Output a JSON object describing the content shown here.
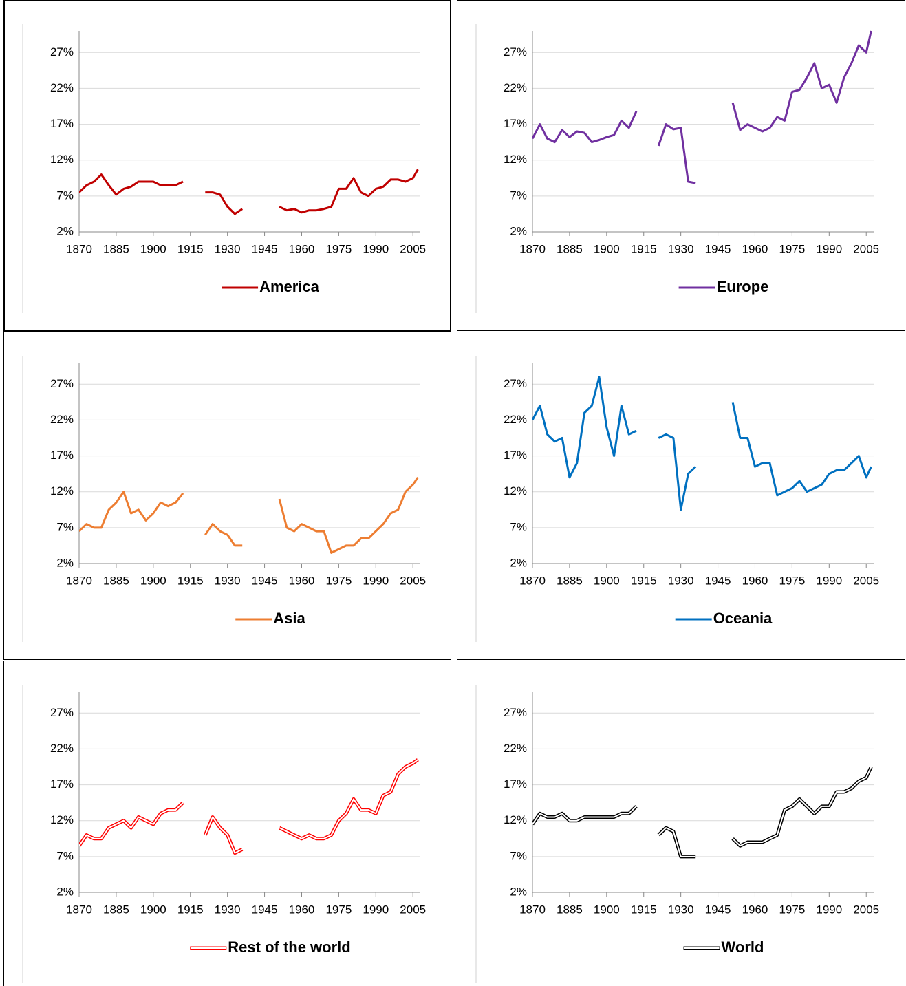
{
  "chart_data": [
    {
      "type": "line",
      "line_style": "single",
      "legend": "bottom",
      "grid": true,
      "x": [
        1870,
        1873,
        1876,
        1879,
        1882,
        1885,
        1888,
        1891,
        1894,
        1897,
        1900,
        1903,
        1906,
        1909,
        1912,
        1915,
        1918,
        1921,
        1924,
        1927,
        1930,
        1933,
        1936,
        1939,
        1942,
        1945,
        1948,
        1951,
        1954,
        1957,
        1960,
        1963,
        1966,
        1969,
        1972,
        1975,
        1978,
        1981,
        1984,
        1987,
        1990,
        1993,
        1996,
        1999,
        2002,
        2005,
        2007
      ],
      "xlim": [
        1870,
        2008
      ],
      "xticks": [
        1870,
        1885,
        1900,
        1915,
        1930,
        1945,
        1960,
        1975,
        1990,
        2005
      ],
      "ylim": [
        2,
        30
      ],
      "yticks": [
        {
          "value": 2,
          "label": "2%"
        },
        {
          "value": 7,
          "label": "7%"
        },
        {
          "value": 12,
          "label": "12%"
        },
        {
          "value": 17,
          "label": "17%"
        },
        {
          "value": 22,
          "label": "22%"
        },
        {
          "value": 27,
          "label": "27%"
        }
      ],
      "series": [
        {
          "name": "America",
          "color": "#C00000",
          "values": [
            7.5,
            8.5,
            9,
            10,
            8.5,
            7.2,
            8,
            8.3,
            9,
            9,
            9,
            8.5,
            8.5,
            8.5,
            9,
            null,
            null,
            7.5,
            7.5,
            7.2,
            5.5,
            4.5,
            5.2,
            null,
            null,
            null,
            null,
            5.5,
            5,
            5.2,
            4.7,
            5,
            5,
            5.2,
            5.5,
            8,
            8,
            9.5,
            7.5,
            7,
            8,
            8.3,
            9.3,
            9.3,
            9,
            9.5,
            10.7
          ]
        }
      ]
    },
    {
      "type": "line",
      "line_style": "single",
      "legend": "bottom",
      "grid": true,
      "x": [
        1870,
        1873,
        1876,
        1879,
        1882,
        1885,
        1888,
        1891,
        1894,
        1897,
        1900,
        1903,
        1906,
        1909,
        1912,
        1915,
        1918,
        1921,
        1924,
        1927,
        1930,
        1933,
        1936,
        1939,
        1942,
        1945,
        1948,
        1951,
        1954,
        1957,
        1960,
        1963,
        1966,
        1969,
        1972,
        1975,
        1978,
        1981,
        1984,
        1987,
        1990,
        1993,
        1996,
        1999,
        2002,
        2005,
        2007
      ],
      "xlim": [
        1870,
        2008
      ],
      "xticks": [
        1870,
        1885,
        1900,
        1915,
        1930,
        1945,
        1960,
        1975,
        1990,
        2005
      ],
      "ylim": [
        2,
        30
      ],
      "yticks": [
        {
          "value": 2,
          "label": "2%"
        },
        {
          "value": 7,
          "label": "7%"
        },
        {
          "value": 12,
          "label": "12%"
        },
        {
          "value": 17,
          "label": "17%"
        },
        {
          "value": 22,
          "label": "22%"
        },
        {
          "value": 27,
          "label": "27%"
        }
      ],
      "series": [
        {
          "name": "Europe",
          "color": "#7030A0",
          "values": [
            15,
            17,
            15,
            14.5,
            16.2,
            15.2,
            16,
            15.8,
            14.5,
            14.8,
            15.2,
            15.5,
            17.5,
            16.5,
            18.8,
            null,
            null,
            14,
            17,
            16.3,
            16.5,
            9,
            8.8,
            null,
            null,
            null,
            null,
            20,
            16.2,
            17,
            16.5,
            16,
            16.5,
            18,
            17.5,
            21.5,
            21.8,
            23.5,
            25.5,
            22,
            22.5,
            20,
            23.5,
            25.5,
            28,
            27,
            30
          ]
        }
      ]
    },
    {
      "type": "line",
      "line_style": "single",
      "legend": "bottom",
      "grid": true,
      "x": [
        1870,
        1873,
        1876,
        1879,
        1882,
        1885,
        1888,
        1891,
        1894,
        1897,
        1900,
        1903,
        1906,
        1909,
        1912,
        1915,
        1918,
        1921,
        1924,
        1927,
        1930,
        1933,
        1936,
        1939,
        1942,
        1945,
        1948,
        1951,
        1954,
        1957,
        1960,
        1963,
        1966,
        1969,
        1972,
        1975,
        1978,
        1981,
        1984,
        1987,
        1990,
        1993,
        1996,
        1999,
        2002,
        2005,
        2007
      ],
      "xlim": [
        1870,
        2008
      ],
      "xticks": [
        1870,
        1885,
        1900,
        1915,
        1930,
        1945,
        1960,
        1975,
        1990,
        2005
      ],
      "ylim": [
        2,
        30
      ],
      "yticks": [
        {
          "value": 2,
          "label": "2%"
        },
        {
          "value": 7,
          "label": "7%"
        },
        {
          "value": 12,
          "label": "12%"
        },
        {
          "value": 17,
          "label": "17%"
        },
        {
          "value": 22,
          "label": "22%"
        },
        {
          "value": 27,
          "label": "27%"
        }
      ],
      "series": [
        {
          "name": "Asia",
          "color": "#ED7D31",
          "values": [
            6.5,
            7.5,
            7,
            7,
            9.5,
            10.5,
            12,
            9,
            9.5,
            8,
            9,
            10.5,
            10,
            10.5,
            11.8,
            null,
            null,
            6,
            7.5,
            6.5,
            6,
            4.5,
            4.5,
            null,
            null,
            null,
            null,
            11,
            7,
            6.5,
            7.5,
            7,
            6.5,
            6.5,
            3.5,
            4,
            4.5,
            4.5,
            5.5,
            5.5,
            6.5,
            7.5,
            9,
            9.5,
            12,
            13,
            14
          ]
        }
      ]
    },
    {
      "type": "line",
      "line_style": "single",
      "legend": "bottom",
      "grid": true,
      "x": [
        1870,
        1873,
        1876,
        1879,
        1882,
        1885,
        1888,
        1891,
        1894,
        1897,
        1900,
        1903,
        1906,
        1909,
        1912,
        1915,
        1918,
        1921,
        1924,
        1927,
        1930,
        1933,
        1936,
        1939,
        1942,
        1945,
        1948,
        1951,
        1954,
        1957,
        1960,
        1963,
        1966,
        1969,
        1972,
        1975,
        1978,
        1981,
        1984,
        1987,
        1990,
        1993,
        1996,
        1999,
        2002,
        2005,
        2007
      ],
      "xlim": [
        1870,
        2008
      ],
      "xticks": [
        1870,
        1885,
        1900,
        1915,
        1930,
        1945,
        1960,
        1975,
        1990,
        2005
      ],
      "ylim": [
        2,
        30
      ],
      "yticks": [
        {
          "value": 2,
          "label": "2%"
        },
        {
          "value": 7,
          "label": "7%"
        },
        {
          "value": 12,
          "label": "12%"
        },
        {
          "value": 17,
          "label": "17%"
        },
        {
          "value": 22,
          "label": "22%"
        },
        {
          "value": 27,
          "label": "27%"
        }
      ],
      "series": [
        {
          "name": "Oceania",
          "color": "#0070C0",
          "values": [
            22,
            24,
            20,
            19,
            19.5,
            14,
            16,
            23,
            24,
            28,
            21,
            17,
            24,
            20,
            20.5,
            null,
            null,
            19.5,
            20,
            19.5,
            9.5,
            14.5,
            15.5,
            null,
            null,
            null,
            null,
            24.5,
            19.5,
            19.5,
            15.5,
            16,
            16,
            11.5,
            12,
            12.5,
            13.5,
            12,
            12.5,
            13,
            14.5,
            15,
            15,
            16,
            17,
            14,
            15.5
          ]
        }
      ]
    },
    {
      "type": "line",
      "line_style": "double",
      "legend": "bottom",
      "grid": true,
      "x": [
        1870,
        1873,
        1876,
        1879,
        1882,
        1885,
        1888,
        1891,
        1894,
        1897,
        1900,
        1903,
        1906,
        1909,
        1912,
        1915,
        1918,
        1921,
        1924,
        1927,
        1930,
        1933,
        1936,
        1939,
        1942,
        1945,
        1948,
        1951,
        1954,
        1957,
        1960,
        1963,
        1966,
        1969,
        1972,
        1975,
        1978,
        1981,
        1984,
        1987,
        1990,
        1993,
        1996,
        1999,
        2002,
        2005,
        2007
      ],
      "xlim": [
        1870,
        2008
      ],
      "xticks": [
        1870,
        1885,
        1900,
        1915,
        1930,
        1945,
        1960,
        1975,
        1990,
        2005
      ],
      "ylim": [
        2,
        30
      ],
      "yticks": [
        {
          "value": 2,
          "label": "2%"
        },
        {
          "value": 7,
          "label": "7%"
        },
        {
          "value": 12,
          "label": "12%"
        },
        {
          "value": 17,
          "label": "17%"
        },
        {
          "value": 22,
          "label": "22%"
        },
        {
          "value": 27,
          "label": "27%"
        }
      ],
      "series": [
        {
          "name": "Rest of the world",
          "color": "#FF0000",
          "values": [
            8.5,
            10,
            9.5,
            9.5,
            11,
            11.5,
            12,
            11,
            12.5,
            12,
            11.5,
            13,
            13.5,
            13.5,
            14.5,
            null,
            null,
            10,
            12.5,
            11,
            10,
            7.5,
            8,
            null,
            null,
            null,
            null,
            11,
            10.5,
            10,
            9.5,
            10,
            9.5,
            9.5,
            10,
            12,
            13,
            15,
            13.5,
            13.5,
            13,
            15.5,
            16,
            18.5,
            19.5,
            20,
            20.5
          ]
        }
      ]
    },
    {
      "type": "line",
      "line_style": "double",
      "legend": "bottom",
      "grid": true,
      "x": [
        1870,
        1873,
        1876,
        1879,
        1882,
        1885,
        1888,
        1891,
        1894,
        1897,
        1900,
        1903,
        1906,
        1909,
        1912,
        1915,
        1918,
        1921,
        1924,
        1927,
        1930,
        1933,
        1936,
        1939,
        1942,
        1945,
        1948,
        1951,
        1954,
        1957,
        1960,
        1963,
        1966,
        1969,
        1972,
        1975,
        1978,
        1981,
        1984,
        1987,
        1990,
        1993,
        1996,
        1999,
        2002,
        2005,
        2007
      ],
      "xlim": [
        1870,
        2008
      ],
      "xticks": [
        1870,
        1885,
        1900,
        1915,
        1930,
        1945,
        1960,
        1975,
        1990,
        2005
      ],
      "ylim": [
        2,
        30
      ],
      "yticks": [
        {
          "value": 2,
          "label": "2%"
        },
        {
          "value": 7,
          "label": "7%"
        },
        {
          "value": 12,
          "label": "12%"
        },
        {
          "value": 17,
          "label": "17%"
        },
        {
          "value": 22,
          "label": "22%"
        },
        {
          "value": 27,
          "label": "27%"
        }
      ],
      "series": [
        {
          "name": "World",
          "color": "#000000",
          "values": [
            11.5,
            13,
            12.5,
            12.5,
            13,
            12,
            12,
            12.5,
            12.5,
            12.5,
            12.5,
            12.5,
            13,
            13,
            14,
            null,
            null,
            10,
            11,
            10.5,
            7,
            7,
            7,
            null,
            null,
            null,
            null,
            9.5,
            8.5,
            9,
            9,
            9,
            9.5,
            10,
            13.5,
            14,
            15,
            14,
            13,
            14,
            14,
            16,
            16,
            16.5,
            17.5,
            18,
            19.5
          ]
        }
      ]
    }
  ]
}
